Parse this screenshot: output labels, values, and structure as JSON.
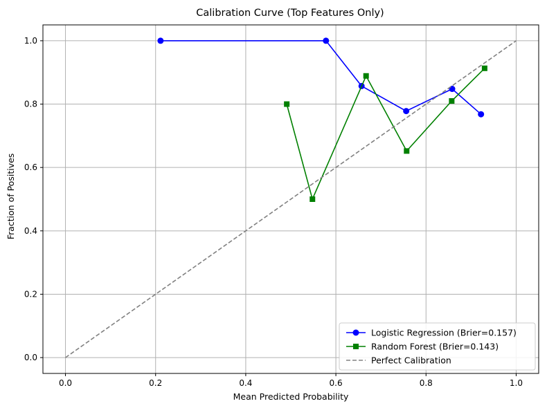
{
  "chart_data": {
    "type": "line",
    "title": "Calibration Curve (Top Features Only)",
    "xlabel": "Mean Predicted Probability",
    "ylabel": "Fraction of Positives",
    "xlim": [
      -0.05,
      1.05
    ],
    "ylim": [
      -0.05,
      1.05
    ],
    "xticks": [
      "0.0",
      "0.2",
      "0.4",
      "0.6",
      "0.8",
      "1.0"
    ],
    "yticks": [
      "0.0",
      "0.2",
      "0.4",
      "0.6",
      "0.8",
      "1.0"
    ],
    "grid": true,
    "legend_position": "lower-right",
    "series": [
      {
        "name": "Logistic Regression (Brier=0.157)",
        "color": "#0000ff",
        "marker": "circle",
        "line_style": "solid",
        "x": [
          0.211,
          0.578,
          0.657,
          0.756,
          0.858,
          0.922
        ],
        "y": [
          1.0,
          1.0,
          0.857,
          0.778,
          0.848,
          0.768
        ]
      },
      {
        "name": "Random Forest (Brier=0.143)",
        "color": "#008000",
        "marker": "square",
        "line_style": "solid",
        "x": [
          0.491,
          0.548,
          0.667,
          0.757,
          0.857,
          0.93
        ],
        "y": [
          0.8,
          0.5,
          0.889,
          0.652,
          0.81,
          0.913
        ]
      },
      {
        "name": "Perfect Calibration",
        "color": "#808080",
        "marker": "none",
        "line_style": "dashed",
        "x": [
          0,
          1
        ],
        "y": [
          0,
          1
        ]
      }
    ]
  }
}
